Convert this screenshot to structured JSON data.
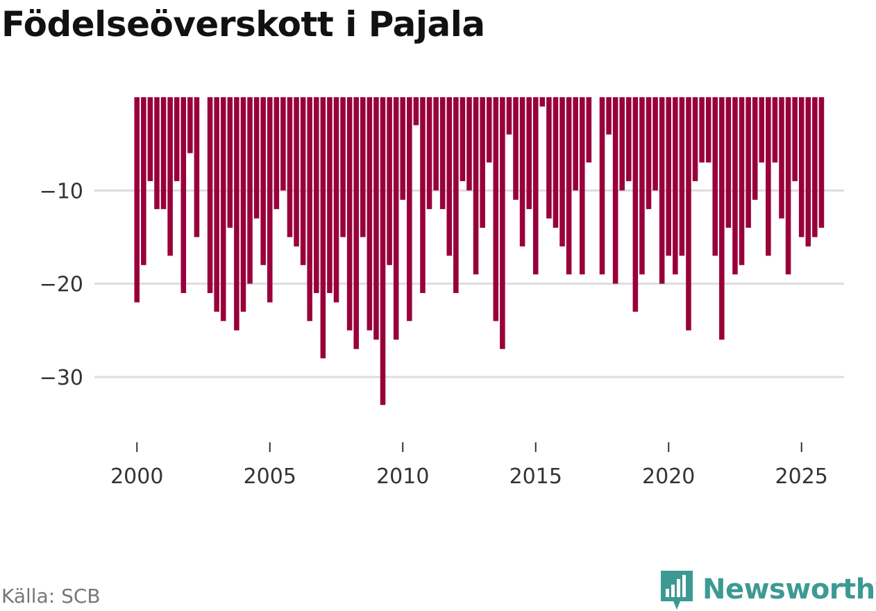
{
  "title": "Födelseöverskott i Pajala",
  "source": "Källa: SCB",
  "brand": {
    "name": "Newsworthy",
    "icon": "newsworthy-logo-icon",
    "color": "#3d9a93"
  },
  "colors": {
    "bar": "#99003a",
    "grid": "#dddddd",
    "axis": "#333333"
  },
  "chart_data": {
    "type": "bar",
    "title": "Födelseöverskott i Pajala",
    "xlabel": "",
    "ylabel": "",
    "frequency": "quarterly",
    "x_start": 2000.0,
    "x_step": 0.25,
    "xticks": [
      2000,
      2005,
      2010,
      2015,
      2020,
      2025
    ],
    "xtick_labels": [
      "2000",
      "2005",
      "2010",
      "2015",
      "2020",
      "2025"
    ],
    "yticks": [
      -10,
      -20,
      -30
    ],
    "ytick_labels": [
      "−10",
      "−20",
      "−30"
    ],
    "ylim": [
      -37,
      0
    ],
    "xlim": [
      1998.4,
      2026.6
    ],
    "grid": "horizontal",
    "values": [
      -22,
      -18,
      -9,
      -12,
      -12,
      -17,
      -9,
      -21,
      -6,
      -15,
      0,
      -21,
      -23,
      -24,
      -14,
      -25,
      -23,
      -20,
      -13,
      -18,
      -22,
      -12,
      -10,
      -15,
      -16,
      -18,
      -24,
      -21,
      -28,
      -21,
      -22,
      -15,
      -25,
      -27,
      -15,
      -25,
      -26,
      -33,
      -18,
      -26,
      -11,
      -24,
      -3,
      -21,
      -12,
      -10,
      -12,
      -17,
      -21,
      -9,
      -10,
      -19,
      -14,
      -7,
      -24,
      -27,
      -4,
      -11,
      -16,
      -12,
      -19,
      -1,
      -13,
      -14,
      -16,
      -19,
      -10,
      -19,
      -7,
      0,
      -19,
      -4,
      -20,
      -10,
      -9,
      -23,
      -19,
      -12,
      -10,
      -20,
      -17,
      -19,
      -17,
      -25,
      -9,
      -7,
      -7,
      -17,
      -26,
      -14,
      -19,
      -18,
      -14,
      -11,
      -7,
      -17,
      -7,
      -13,
      -19,
      -9,
      -15,
      -16,
      -15,
      -14
    ]
  }
}
